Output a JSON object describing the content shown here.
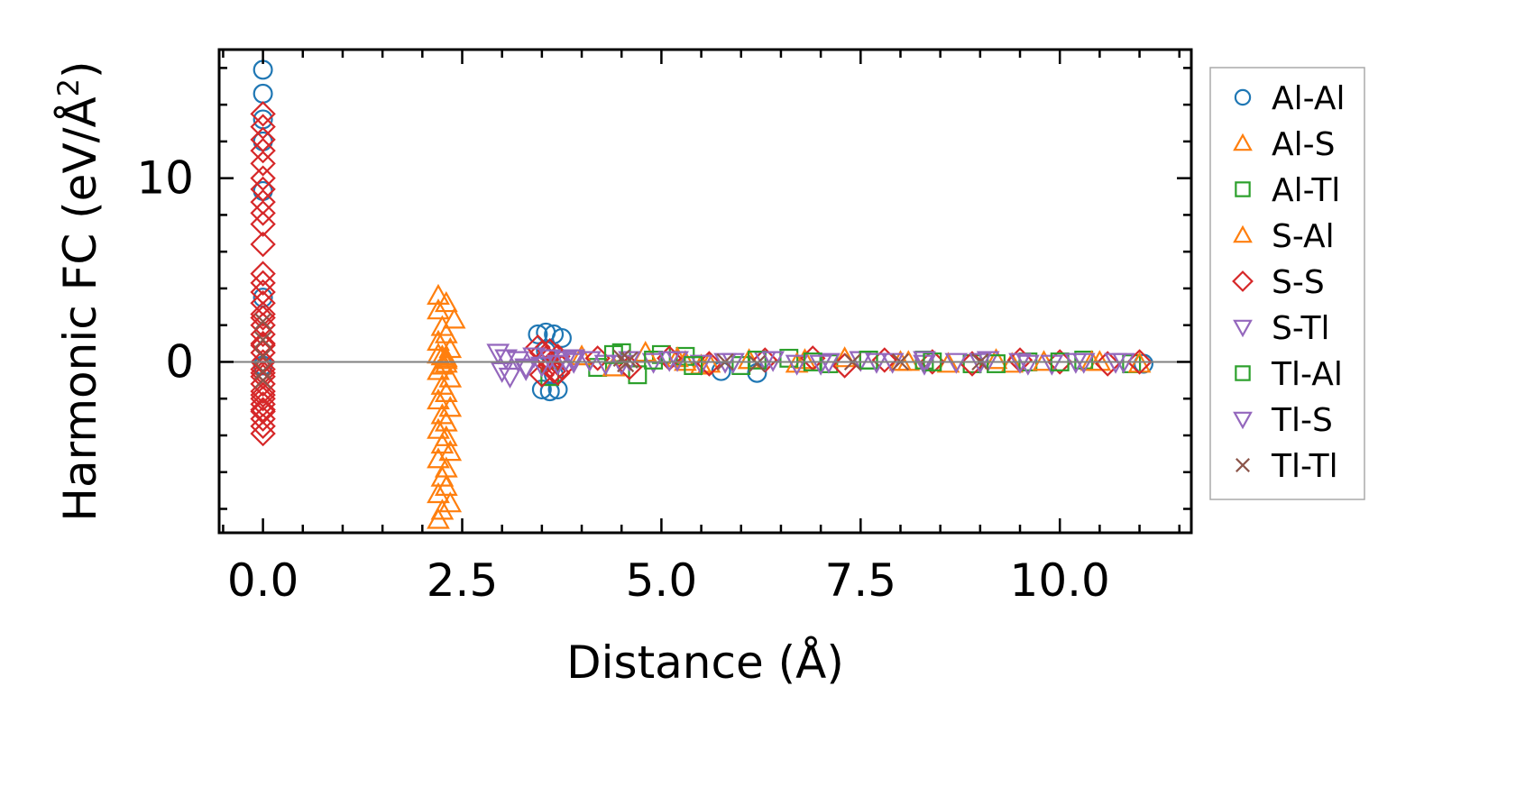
{
  "chart_data": {
    "type": "scatter",
    "title": "",
    "xlabel": "Distance (Å)",
    "ylabel_prefix": "Harmonic FC (eV/Å",
    "ylabel_sup": "2",
    "ylabel_suffix": ")",
    "xlim": [
      -0.55,
      11.65
    ],
    "ylim": [
      -9.3,
      17
    ],
    "x_ticks": [
      0.0,
      2.5,
      5.0,
      7.5,
      10.0
    ],
    "x_tick_labels": [
      "0.0",
      "2.5",
      "5.0",
      "7.5",
      "10.0"
    ],
    "y_ticks": [
      0,
      10
    ],
    "y_tick_labels": [
      "0",
      "10"
    ],
    "zero_line": true,
    "legend_position": "outside-right",
    "series": [
      {
        "name": "Al-Al",
        "marker": "circle",
        "color": "#1f77b4",
        "x": [
          0,
          0,
          0,
          0,
          0,
          0,
          0,
          3.45,
          3.55,
          3.65,
          3.75,
          3.5,
          3.6,
          3.7,
          3.55,
          3.65,
          5.75,
          6.2,
          11.05
        ],
        "y": [
          15.9,
          14.6,
          13.2,
          12.0,
          9.3,
          3.5,
          -0.2,
          1.5,
          1.6,
          1.5,
          1.3,
          -1.5,
          -1.6,
          -1.5,
          0.6,
          -0.7,
          -0.5,
          -0.6,
          -0.1
        ]
      },
      {
        "name": "Al-S",
        "marker": "triangle-up",
        "color": "#ff7f0e",
        "x": [
          2.2,
          2.3,
          2.2,
          2.4,
          2.25,
          2.3,
          2.2,
          2.35,
          2.25,
          2.3,
          2.2,
          2.35,
          2.25,
          2.3,
          2.2,
          2.35,
          2.25,
          2.3,
          2.2,
          2.3,
          2.25,
          2.35,
          2.2,
          2.3,
          2.25,
          2.3,
          2.2,
          2.35,
          2.25,
          2.2,
          2.3,
          2.25,
          2.2,
          2.3,
          5.3,
          5.6,
          6.8,
          8.1,
          9.4,
          10.5
        ],
        "y": [
          3.6,
          3.2,
          2.8,
          2.3,
          1.9,
          1.5,
          1.1,
          0.7,
          0.3,
          -0.1,
          -0.5,
          -0.9,
          -1.3,
          -1.7,
          -2.1,
          -2.5,
          -2.9,
          -3.3,
          -3.7,
          -4.1,
          -4.5,
          -4.9,
          -5.3,
          -5.8,
          -6.3,
          -6.8,
          -7.2,
          -7.7,
          -8.1,
          -8.6,
          0.1,
          -0.2,
          0.4,
          0.2,
          0.0,
          -0.1,
          0.1,
          0.0,
          -0.1,
          0.0
        ]
      },
      {
        "name": "Al-Tl",
        "marker": "square",
        "color": "#2ca02c",
        "x": [
          3.6,
          4.2,
          4.5,
          4.7,
          5.0,
          5.3,
          6.0,
          6.6,
          7.1,
          7.6,
          8.3,
          8.9,
          9.6,
          10.3,
          10.9
        ],
        "y": [
          -0.8,
          -0.3,
          0.5,
          -0.7,
          0.4,
          0.3,
          -0.2,
          0.2,
          -0.1,
          0.1,
          0.1,
          -0.1,
          0.0,
          0.1,
          -0.1
        ]
      },
      {
        "name": "S-Al",
        "marker": "triangle-up",
        "color": "#ff7f0e",
        "x": [
          4.0,
          4.4,
          4.8,
          5.2,
          5.5,
          6.1,
          6.7,
          7.3,
          8.0,
          8.6,
          9.2,
          9.8,
          10.4,
          11.0
        ],
        "y": [
          0.3,
          -0.3,
          0.5,
          0.2,
          -0.2,
          0.1,
          -0.1,
          0.2,
          0.0,
          -0.1,
          0.1,
          0.0,
          0.0,
          -0.1
        ]
      },
      {
        "name": "S-S",
        "marker": "diamond",
        "color": "#d62728",
        "x": [
          0,
          0,
          0,
          0,
          0,
          0,
          0,
          0,
          0,
          0,
          0,
          0,
          0,
          0,
          0,
          0,
          0,
          0,
          0,
          0,
          0,
          0,
          0,
          0,
          0,
          0,
          0,
          0,
          0,
          0,
          0,
          0,
          0,
          0,
          0,
          0,
          3.45,
          3.5,
          3.55,
          3.6,
          3.65,
          3.7,
          3.75,
          3.5,
          3.6,
          3.7,
          4.2,
          4.6,
          5.1,
          5.6,
          6.3,
          6.9,
          7.3,
          7.8,
          8.4,
          8.9,
          9.5,
          10.0,
          10.6,
          11.0
        ],
        "y": [
          13.5,
          12.8,
          12.1,
          11.5,
          10.8,
          10.0,
          9.4,
          8.7,
          8.1,
          7.5,
          6.4,
          4.8,
          4.3,
          3.8,
          3.2,
          2.6,
          2.0,
          1.5,
          1.0,
          0.5,
          0.0,
          -0.4,
          -0.8,
          -1.2,
          -1.6,
          -2.0,
          -2.3,
          -2.7,
          -3.1,
          -3.5,
          -3.9,
          -0.6,
          0.9,
          -1.8,
          2.4,
          -2.6,
          0.8,
          0.5,
          0.2,
          -0.2,
          -0.5,
          0.3,
          -0.3,
          -0.7,
          0.6,
          -0.6,
          0.2,
          -0.3,
          0.2,
          -0.1,
          0.1,
          0.2,
          -0.2,
          0.1,
          0.0,
          -0.1,
          0.1,
          0.0,
          -0.1,
          0.0
        ]
      },
      {
        "name": "S-Tl",
        "marker": "triangle-down",
        "color": "#9467bd",
        "x": [
          2.95,
          3.0,
          3.05,
          3.1,
          3.2,
          3.3,
          3.4,
          3.5,
          3.6,
          3.7,
          3.8,
          3.9,
          4.1,
          4.3,
          4.6,
          4.9,
          5.2,
          5.5,
          5.9,
          6.3,
          6.7,
          7.1,
          7.5,
          7.9,
          8.3,
          8.7,
          9.1,
          9.5,
          9.9,
          10.3,
          10.7
        ],
        "y": [
          0.5,
          -0.5,
          0.2,
          -0.8,
          0.1,
          -0.4,
          0.3,
          -0.2,
          0.2,
          -0.1,
          0.1,
          0.0,
          0.1,
          -0.1,
          0.1,
          0.0,
          0.1,
          -0.1,
          0.0,
          0.1,
          -0.1,
          0.0,
          0.1,
          0.0,
          -0.1,
          0.0,
          0.1,
          0.0,
          -0.1,
          0.0,
          0.0
        ]
      },
      {
        "name": "Tl-Al",
        "marker": "square",
        "color": "#2ca02c",
        "x": [
          4.4,
          4.9,
          5.4,
          6.2,
          6.9,
          7.6,
          8.4,
          9.2,
          10.0
        ],
        "y": [
          0.4,
          0.1,
          -0.2,
          0.1,
          0.0,
          0.1,
          0.0,
          -0.1,
          0.0
        ]
      },
      {
        "name": "Tl-S",
        "marker": "triangle-down",
        "color": "#9467bd",
        "x": [
          3.3,
          3.9,
          4.5,
          5.1,
          5.8,
          6.4,
          7.0,
          7.7,
          8.3,
          9.0,
          9.6,
          10.2,
          10.8
        ],
        "y": [
          -0.3,
          0.2,
          -0.1,
          0.1,
          0.0,
          0.1,
          -0.1,
          0.0,
          0.1,
          0.0,
          -0.1,
          0.0,
          0.0
        ]
      },
      {
        "name": "Tl-Tl",
        "marker": "x",
        "color": "#8c564b",
        "x": [
          0,
          0,
          0,
          0,
          0,
          4.5,
          4.55,
          4.6,
          5.8,
          6.2,
          7.4,
          8.0,
          9.0
        ],
        "y": [
          2.2,
          1.2,
          0.3,
          -0.5,
          -1.0,
          0.2,
          -0.1,
          0.1,
          0.0,
          -0.1,
          0.0,
          0.0,
          0.0
        ]
      }
    ]
  }
}
